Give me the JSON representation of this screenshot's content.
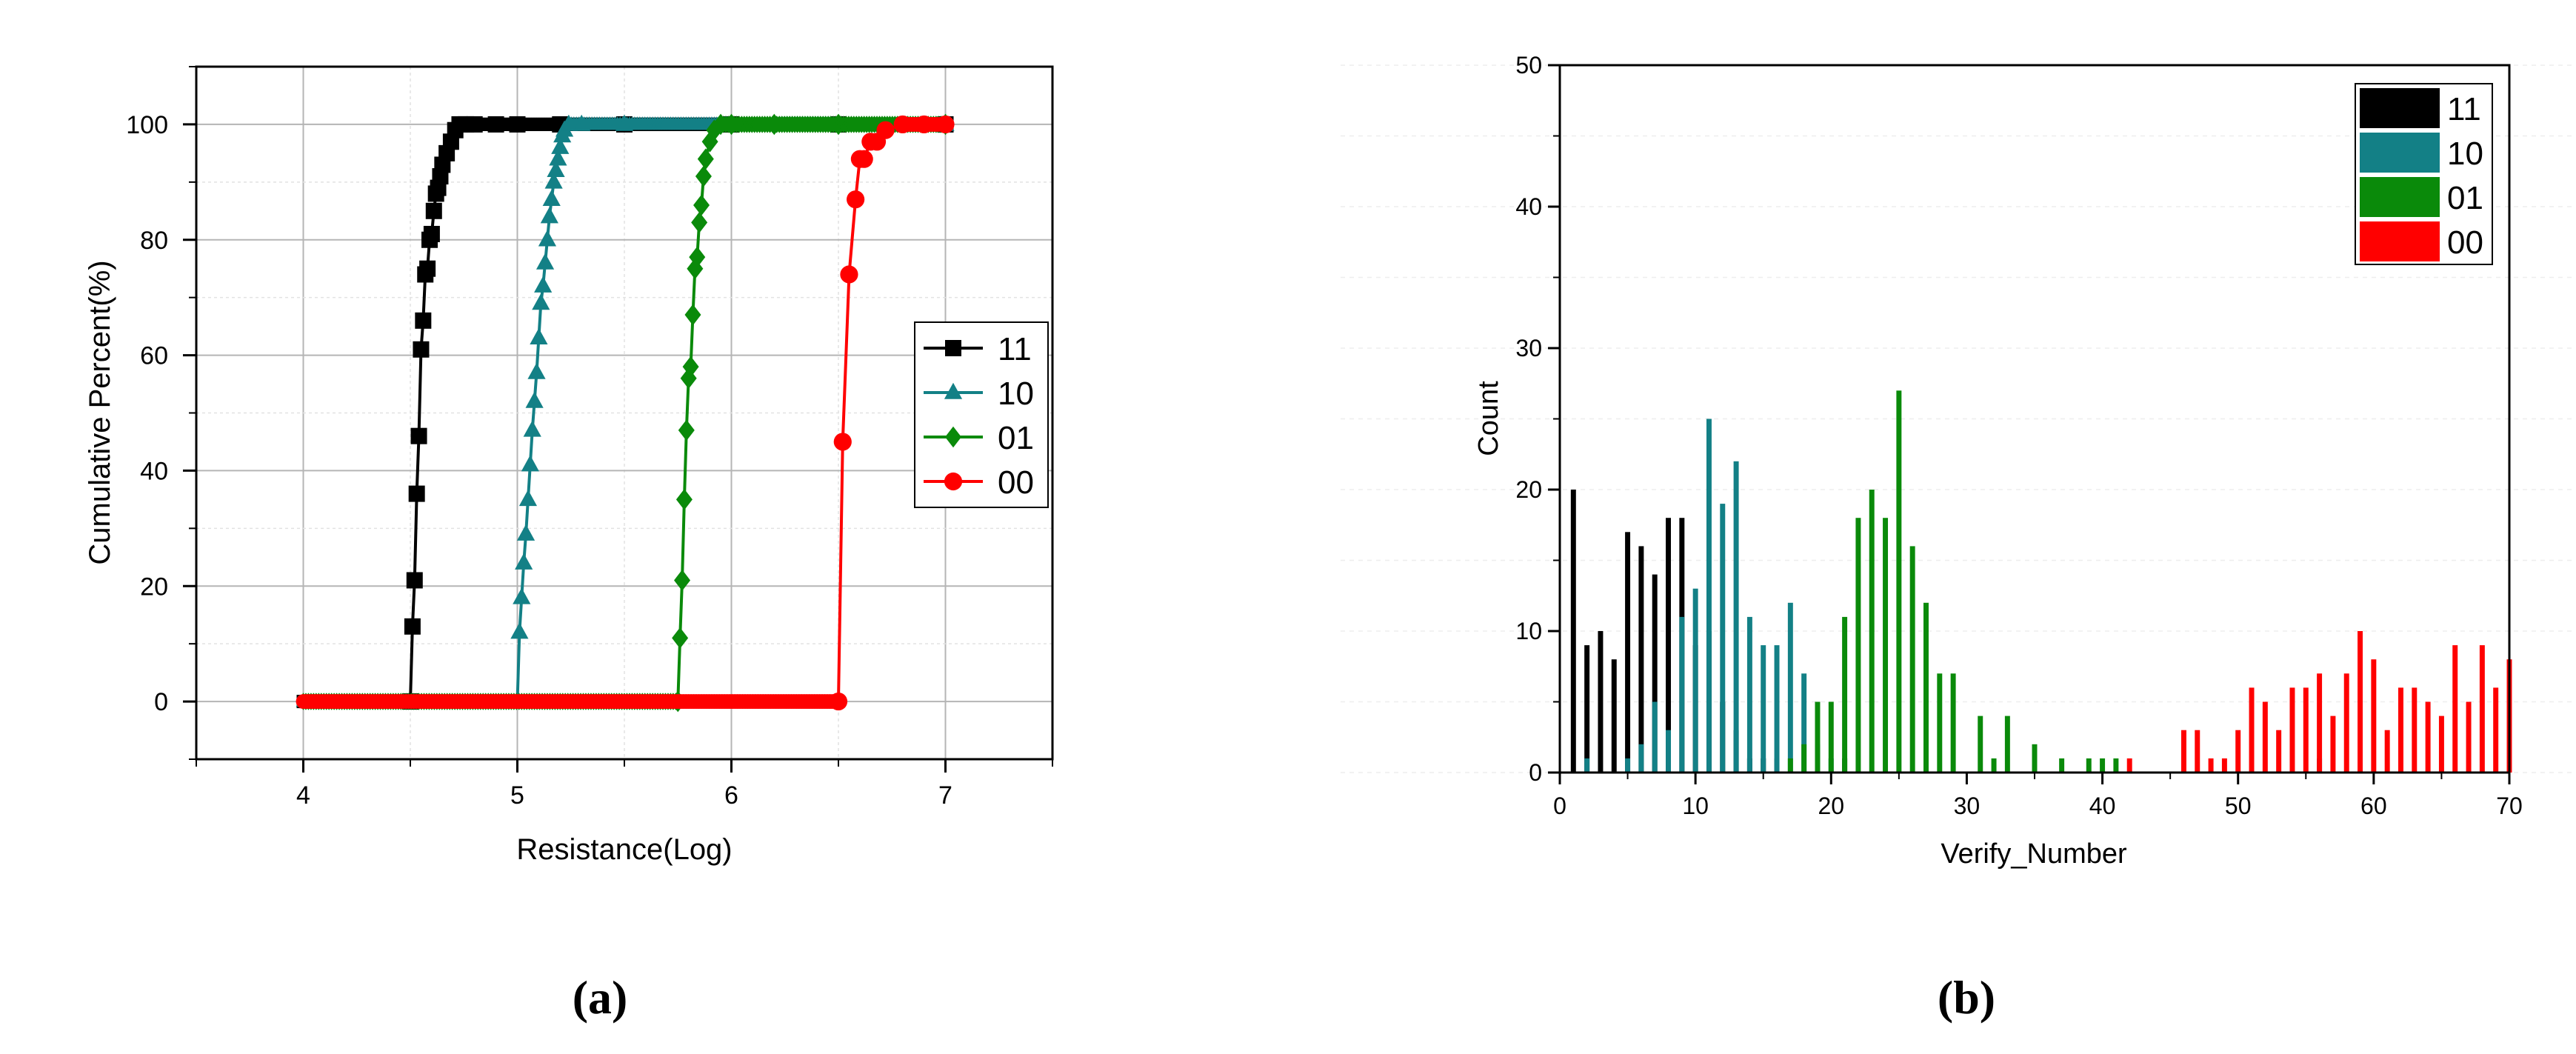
{
  "panels": {
    "a_label": "(a)",
    "b_label": "(b)"
  },
  "chart_data": [
    {
      "type": "line",
      "xlabel": "Resistance(Log)",
      "ylabel": "Cumulative Percent(%)",
      "xlim": [
        3.5,
        7.5
      ],
      "ylim": [
        -10,
        110
      ],
      "xticks": [
        "4",
        "5",
        "6",
        "7"
      ],
      "yticks": [
        "0",
        "20",
        "40",
        "60",
        "80",
        "100"
      ],
      "grid": true,
      "legend_position": "right",
      "series": [
        {
          "name": "11",
          "color": "#000000",
          "marker": "square",
          "x": [
            4.0,
            4.5,
            4.51,
            4.52,
            4.53,
            4.54,
            4.55,
            4.56,
            4.57,
            4.58,
            4.59,
            4.6,
            4.61,
            4.62,
            4.63,
            4.64,
            4.65,
            4.67,
            4.69,
            4.71,
            4.73,
            4.76,
            4.8,
            4.9,
            5.0,
            5.2,
            5.5,
            6.0,
            6.5,
            7.0
          ],
          "y": [
            0,
            0,
            13,
            21,
            36,
            46,
            61,
            66,
            74,
            75,
            80,
            81,
            85,
            88,
            89,
            91,
            93,
            95,
            97,
            99,
            100,
            100,
            100,
            100,
            100,
            100,
            100,
            100,
            100,
            100
          ]
        },
        {
          "name": "10",
          "color": "#138086",
          "marker": "triangle",
          "x": [
            4.0,
            5.0,
            5.01,
            5.02,
            5.03,
            5.04,
            5.05,
            5.06,
            5.07,
            5.08,
            5.09,
            5.1,
            5.11,
            5.12,
            5.13,
            5.14,
            5.15,
            5.16,
            5.17,
            5.18,
            5.19,
            5.2,
            5.21,
            5.22,
            5.24,
            5.3,
            5.5,
            6.0,
            6.5,
            7.0
          ],
          "y": [
            0,
            0,
            12,
            18,
            24,
            29,
            35,
            41,
            47,
            52,
            57,
            63,
            69,
            72,
            76,
            80,
            84,
            87,
            90,
            92,
            94,
            96,
            98,
            99,
            100,
            100,
            100,
            100,
            100,
            100
          ]
        },
        {
          "name": "01",
          "color": "#0a8a0a",
          "marker": "diamond",
          "x": [
            4.0,
            5.75,
            5.76,
            5.77,
            5.78,
            5.79,
            5.8,
            5.81,
            5.82,
            5.83,
            5.84,
            5.85,
            5.86,
            5.87,
            5.88,
            5.9,
            5.92,
            5.95,
            6.0,
            6.2,
            6.5,
            7.0
          ],
          "y": [
            0,
            0,
            11,
            21,
            35,
            47,
            56,
            58,
            67,
            75,
            77,
            83,
            86,
            91,
            94,
            97,
            99,
            100,
            100,
            100,
            100,
            100
          ]
        },
        {
          "name": "00",
          "color": "#ff0000",
          "marker": "circle",
          "x": [
            4.0,
            6.5,
            6.52,
            6.55,
            6.58,
            6.6,
            6.62,
            6.65,
            6.68,
            6.72,
            6.8,
            6.9,
            7.0
          ],
          "y": [
            0,
            0,
            45,
            74,
            87,
            94,
            94,
            97,
            97,
            99,
            100,
            100,
            100
          ]
        }
      ]
    },
    {
      "type": "bar",
      "xlabel": "Verify_Number",
      "ylabel": "Count",
      "xlim": [
        0,
        70
      ],
      "ylim": [
        0,
        50
      ],
      "xticks": [
        "0",
        "10",
        "20",
        "30",
        "40",
        "50",
        "60",
        "70"
      ],
      "yticks": [
        "0",
        "10",
        "20",
        "30",
        "40",
        "50"
      ],
      "legend_position": "top-right",
      "series": [
        {
          "name": "11",
          "color": "#000000",
          "x": [
            1,
            2,
            3,
            4,
            5,
            6,
            7,
            8,
            9,
            10,
            11,
            12,
            13,
            14,
            15,
            16,
            21
          ],
          "y": [
            20,
            9,
            10,
            8,
            17,
            16,
            14,
            18,
            18,
            9,
            10,
            5,
            3,
            1,
            1,
            1,
            1
          ]
        },
        {
          "name": "10",
          "color": "#138086",
          "values_note": "",
          "x": [
            2,
            5,
            6,
            7,
            8,
            9,
            10,
            11,
            12,
            13,
            14,
            15,
            16,
            17,
            18,
            19,
            20,
            56
          ],
          "y": [
            1,
            1,
            2,
            5,
            3,
            11,
            13,
            25,
            19,
            22,
            11,
            9,
            9,
            12,
            7,
            2,
            1,
            1
          ]
        },
        {
          "name": "01",
          "color": "#0a8a0a",
          "x": [
            17,
            18,
            19,
            20,
            21,
            22,
            23,
            24,
            25,
            26,
            27,
            28,
            29,
            31,
            32,
            33,
            35,
            37,
            39,
            40,
            41
          ],
          "y": [
            1,
            2,
            5,
            5,
            11,
            18,
            20,
            18,
            27,
            16,
            12,
            7,
            7,
            4,
            1,
            4,
            2,
            1,
            1,
            1,
            1
          ]
        },
        {
          "name": "00",
          "color": "#ff0000",
          "x": [
            42,
            46,
            47,
            48,
            49,
            50,
            51,
            52,
            53,
            54,
            55,
            56,
            57,
            58,
            59,
            60,
            61,
            62,
            63,
            64,
            65,
            66,
            67,
            68,
            69,
            70
          ],
          "y": [
            1,
            3,
            3,
            1,
            1,
            3,
            6,
            5,
            3,
            6,
            6,
            7,
            4,
            7,
            10,
            8,
            3,
            6,
            6,
            5,
            4,
            9,
            5,
            9,
            6,
            8
          ]
        }
      ]
    }
  ]
}
